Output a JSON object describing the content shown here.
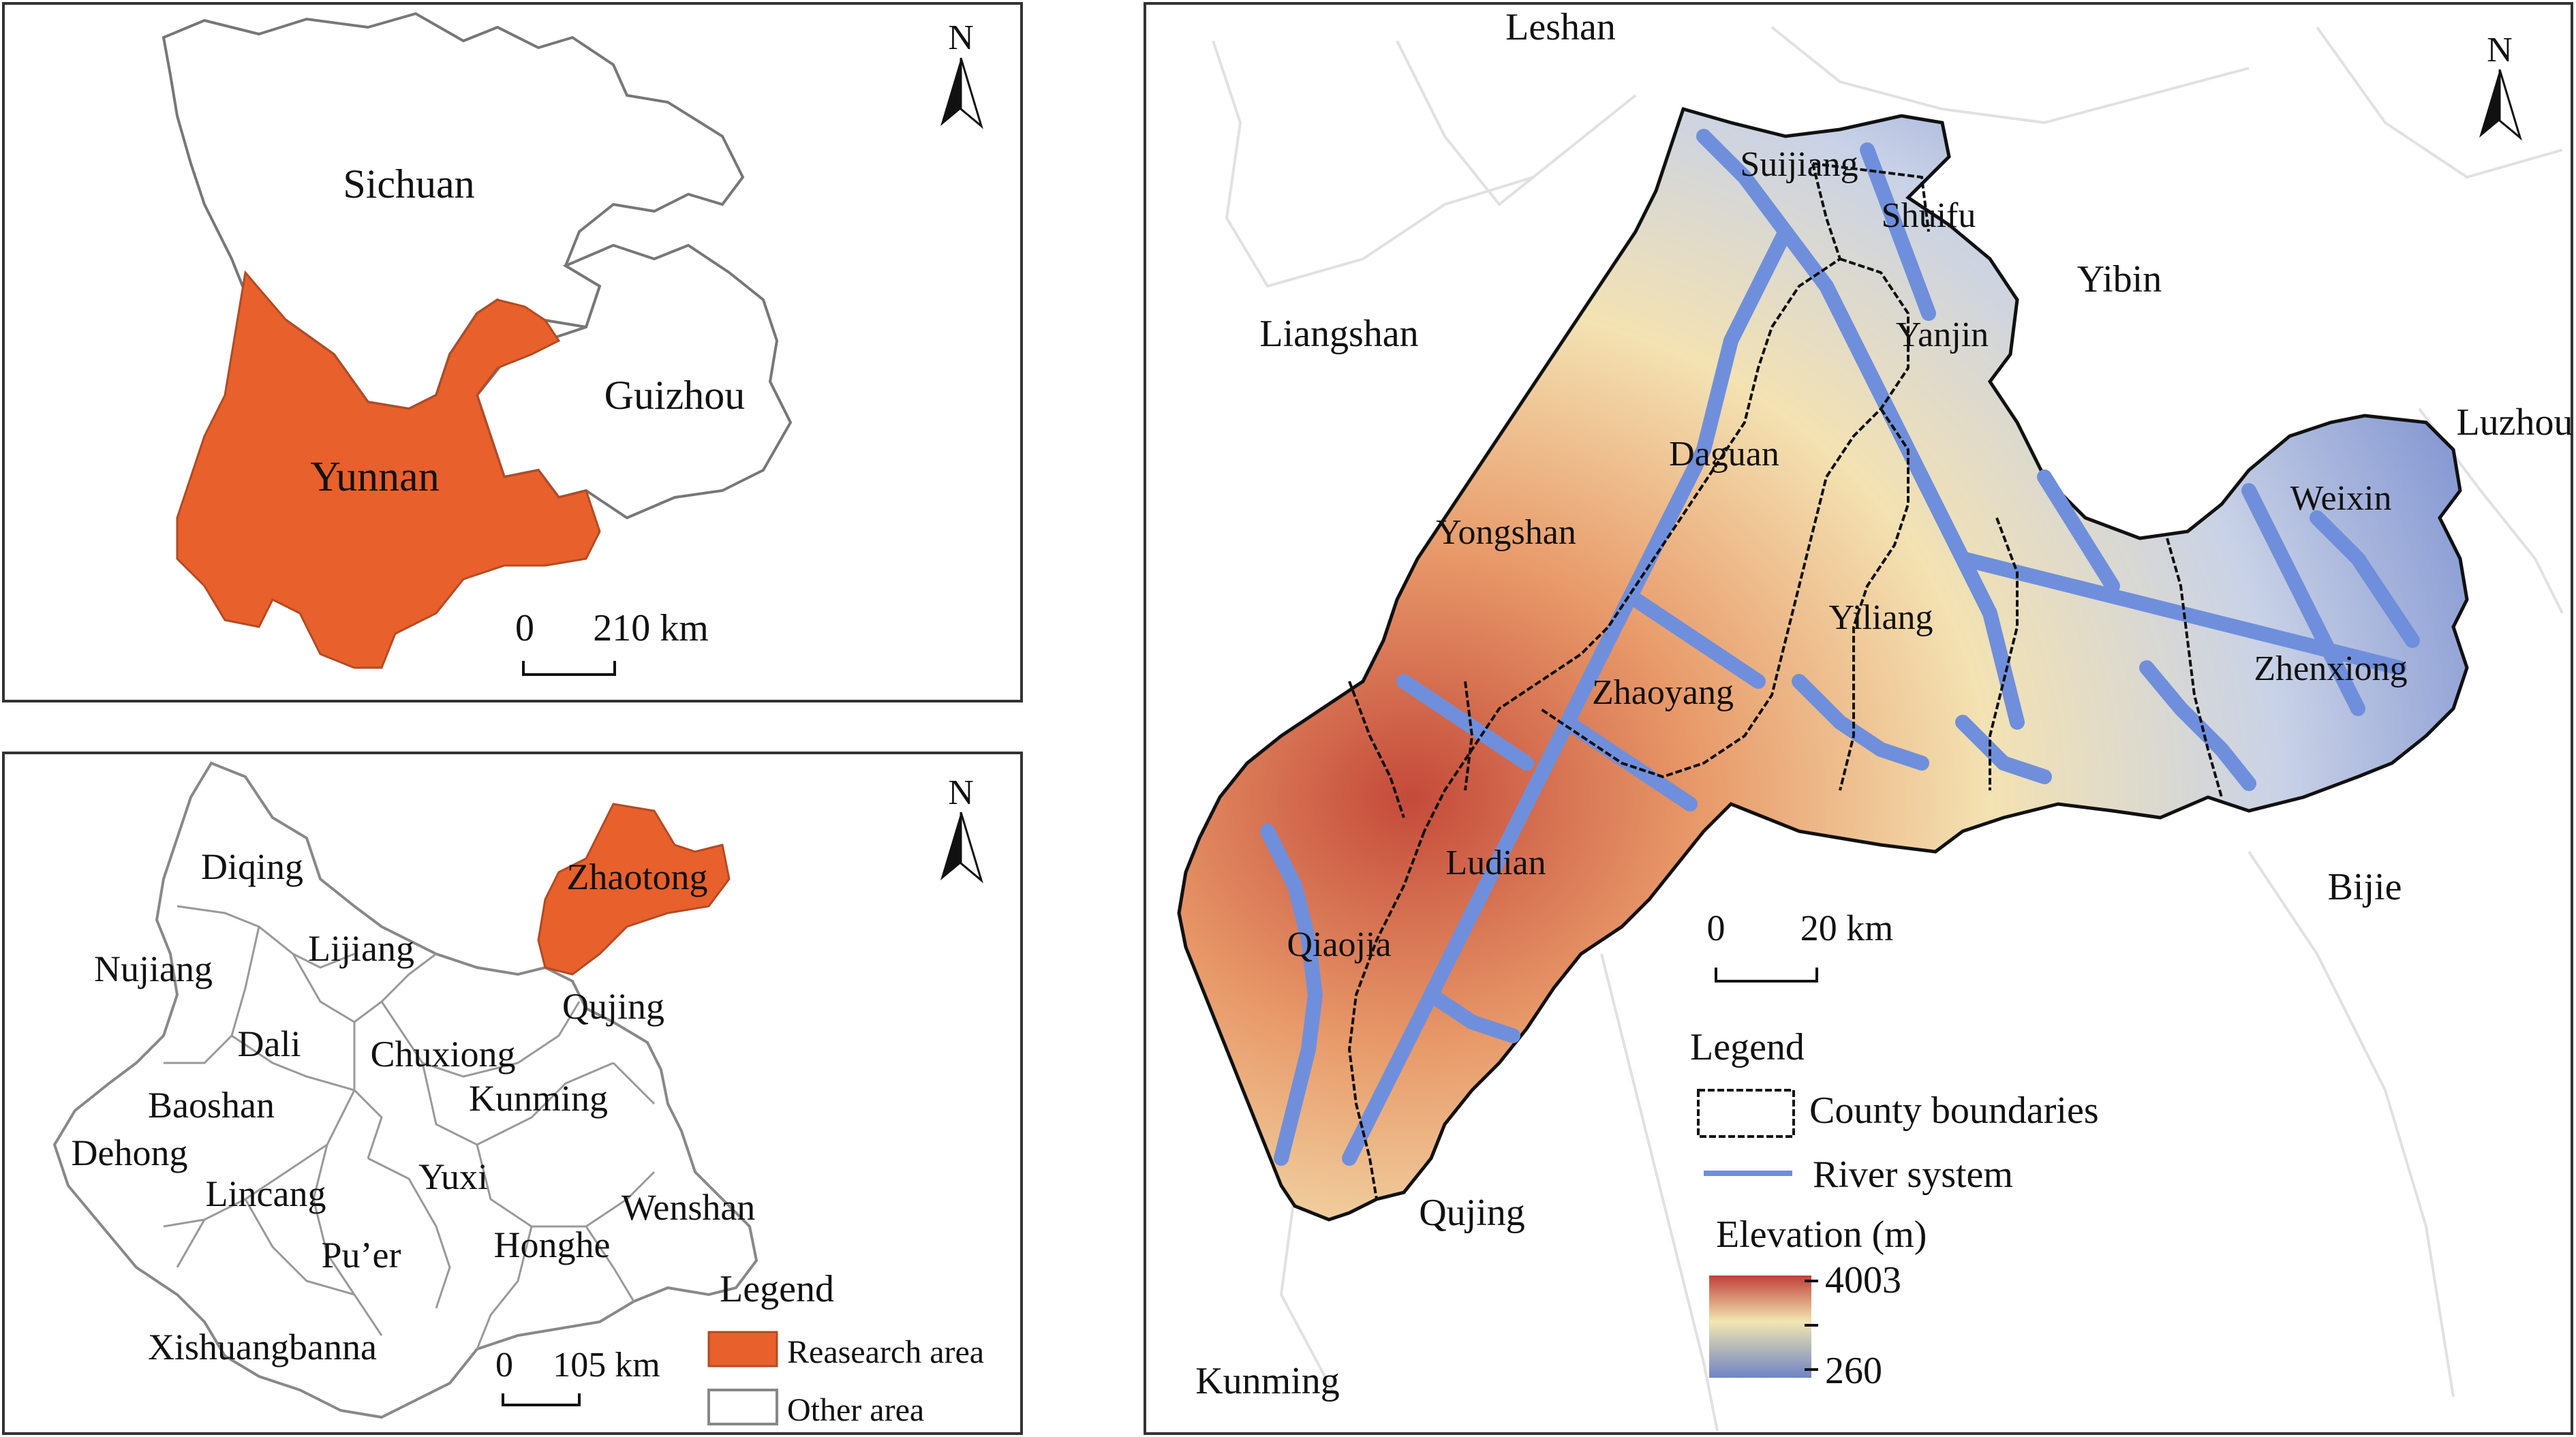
{
  "colors": {
    "research_area": "#e8602c",
    "other_area": "#ffffff",
    "boundary": "#777777",
    "river": "#6f8fdc",
    "county_boundary": "#111111",
    "elevation_high": "#c0403a",
    "elevation_mid": "#f2e6b0",
    "elevation_low": "#6f83c6"
  },
  "map1": {
    "north": "N",
    "labels": {
      "sichuan": "Sichuan",
      "guizhou": "Guizhou",
      "yunnan": "Yunnan"
    },
    "scale": {
      "zero": "0",
      "value": "210 km"
    }
  },
  "map2": {
    "north": "N",
    "labels": {
      "diqing": "Diqing",
      "nujiang": "Nujiang",
      "lijiang": "Lijiang",
      "dali": "Dali",
      "baoshan": "Baoshan",
      "dehong": "Dehong",
      "lincang": "Lincang",
      "puer": "Pu’er",
      "xishuangbanna": "Xishuangbanna",
      "chuxiong": "Chuxiong",
      "kunming": "Kunming",
      "yuxi": "Yuxi",
      "honghe": "Honghe",
      "wenshan": "Wenshan",
      "qujing": "Qujing",
      "zhaotong": "Zhaotong"
    },
    "scale": {
      "zero": "0",
      "value": "105 km"
    },
    "legend": {
      "title": "Legend",
      "research": "Reasearch area",
      "other": "Other area"
    }
  },
  "map3": {
    "north": "N",
    "outer_labels": {
      "leshan": "Leshan",
      "liangshan": "Liangshan",
      "yibin": "Yibin",
      "luzhou": "Luzhou",
      "bijie": "Bijie",
      "qujing": "Qujing",
      "kunming": "Kunming"
    },
    "county_labels": {
      "suijiang": "Suijiang",
      "shuifu": "Shuifu",
      "yanjin": "Yanjin",
      "daguan": "Daguan",
      "yongshan": "Yongshan",
      "weixin": "Weixin",
      "yiliang": "Yiliang",
      "zhaoyang": "Zhaoyang",
      "zhenxiong": "Zhenxiong",
      "ludian": "Ludian",
      "qiaojia": "Qiaojia"
    },
    "scale": {
      "zero": "0",
      "value": "20 km"
    },
    "legend": {
      "title": "Legend",
      "county": "County boundaries",
      "river": "River system",
      "elevation_title": "Elevation (m)",
      "max": "4003",
      "min": "260"
    }
  }
}
